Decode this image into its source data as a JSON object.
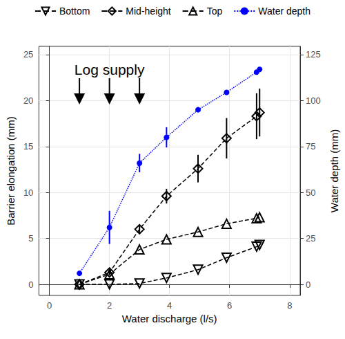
{
  "chart_data": {
    "type": "line",
    "xlabel": "Water discharge (l/s)",
    "ylabel": "Barrier elongation (mm)",
    "y2label": "Water depth (mm)",
    "xlim": [
      -0.35,
      8.35
    ],
    "xticks": [
      0,
      2,
      4,
      6,
      8
    ],
    "ylim": [
      -1.2,
      25.9
    ],
    "yticks": [
      0,
      5,
      10,
      15,
      20,
      25
    ],
    "y2lim": [
      -6,
      129.5
    ],
    "y2ticks": [
      0,
      25,
      50,
      75,
      100,
      125
    ],
    "grid": true,
    "legend": "top",
    "annotation": {
      "text": "Log supply",
      "x": [
        1,
        2,
        3
      ]
    },
    "x": [
      1,
      2,
      3,
      3.9,
      4.95,
      5.9,
      6.9,
      7.0
    ],
    "series": [
      {
        "name": "Bottom",
        "color": "#000000",
        "marker": "triangle-down",
        "line_style": "dashed",
        "values": [
          0,
          0,
          0.1,
          0.7,
          1.6,
          2.9,
          4.1,
          4.3
        ]
      },
      {
        "name": "Mid-height",
        "color": "#000000",
        "marker": "diamond",
        "line_style": "dashed",
        "values": [
          0,
          1.3,
          6.0,
          9.6,
          12.6,
          15.9,
          18.3,
          18.7
        ],
        "errors": [
          null,
          0.3,
          0.5,
          0.8,
          1.5,
          2.2,
          2.5,
          2.6
        ]
      },
      {
        "name": "Top",
        "color": "#000000",
        "marker": "triangle-up",
        "line_style": "dashed",
        "values": [
          0,
          1.1,
          3.8,
          4.9,
          5.7,
          6.6,
          7.2,
          7.3
        ]
      },
      {
        "name": "Water depth",
        "color": "#0000ff",
        "marker": "circle",
        "line_style": "dotted",
        "axis": "y2",
        "values": [
          6,
          31,
          66,
          80,
          95,
          104.5,
          115.5,
          117
        ],
        "errors": [
          null,
          9,
          5,
          5.5,
          null,
          null,
          null,
          null
        ]
      }
    ]
  }
}
